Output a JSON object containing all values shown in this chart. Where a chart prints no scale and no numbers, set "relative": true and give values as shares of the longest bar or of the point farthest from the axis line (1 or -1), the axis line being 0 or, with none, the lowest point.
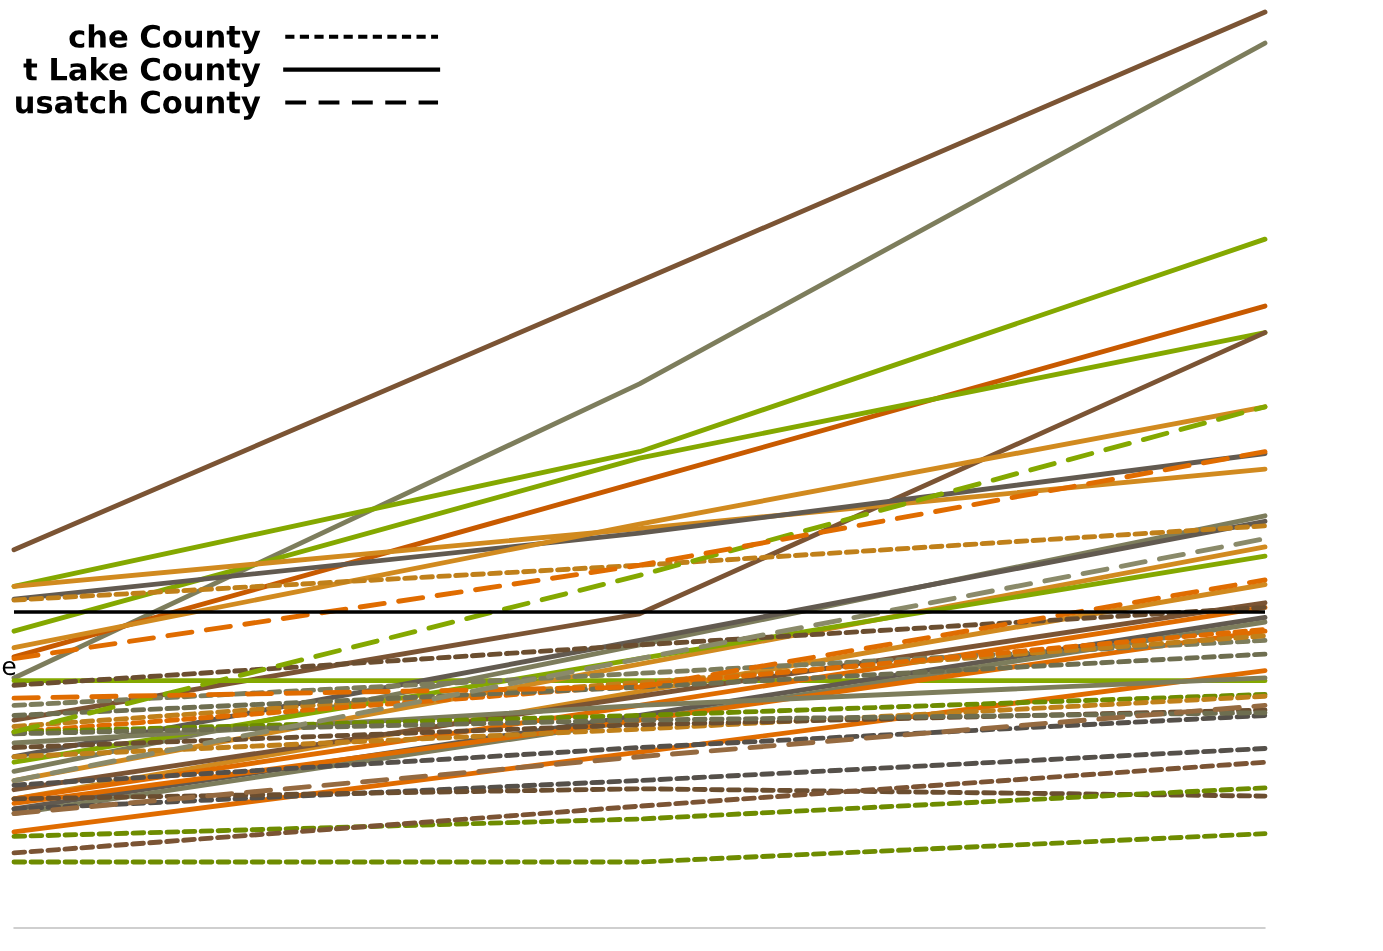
{
  "chart_data": {
    "type": "line",
    "relative": true,
    "categories": [
      null,
      null,
      null
    ],
    "legend": "top left",
    "grid": false,
    "marker": "none",
    "annotations": [
      "e"
    ],
    "ref_lines": [
      {
        "axis": "y",
        "value": 0.345,
        "color": "#000000",
        "line_style": "solid"
      }
    ],
    "series": [
      {
        "name": "che County",
        "color": "#000000",
        "line_style": "dotted",
        "values": [
          null,
          null,
          null
        ]
      },
      {
        "name": "t Lake County",
        "color": "#000000",
        "line_style": "solid",
        "values": [
          null,
          null,
          null
        ]
      },
      {
        "name": "usatch County",
        "color": "#000000",
        "line_style": "dashed",
        "values": [
          null,
          null,
          null
        ]
      },
      {
        "color": "#7b5434",
        "line_style": "solid",
        "values": [
          0.413,
          0.706,
          1.0
        ]
      },
      {
        "color": "#7d7d5c",
        "line_style": "solid",
        "values": [
          0.273,
          0.594,
          0.966
        ]
      },
      {
        "color": "#84a800",
        "line_style": "solid",
        "values": [
          0.373,
          0.52,
          0.752
        ]
      },
      {
        "color": "#c85a00",
        "line_style": "solid",
        "values": [
          0.296,
          0.487,
          0.679
        ]
      },
      {
        "color": "#84a800",
        "line_style": "solid",
        "values": [
          0.324,
          0.513,
          0.65
        ]
      },
      {
        "color": "#7b5434",
        "line_style": "solid",
        "values": [
          0.227,
          0.343,
          0.65
        ]
      },
      {
        "color": "#d18a1f",
        "line_style": "solid",
        "values": [
          0.373,
          0.436,
          0.501
        ]
      },
      {
        "color": "#625a50",
        "line_style": "solid",
        "values": [
          0.359,
          0.431,
          0.518
        ]
      },
      {
        "color": "#d18a1f",
        "line_style": "solid",
        "values": [
          0.306,
          0.441,
          0.569
        ]
      },
      {
        "color": "#84a800",
        "line_style": "solid",
        "values": [
          0.27,
          0.27,
          0.27
        ]
      },
      {
        "color": "#7d7d5c",
        "line_style": "solid",
        "values": [
          0.171,
          0.309,
          0.45
        ]
      },
      {
        "color": "#625a50",
        "line_style": "solid",
        "values": [
          0.187,
          0.314,
          0.444
        ]
      },
      {
        "color": "#d18a1f",
        "line_style": "solid",
        "values": [
          0.161,
          0.288,
          0.416
        ]
      },
      {
        "color": "#84a800",
        "line_style": "solid",
        "values": [
          0.181,
          0.294,
          0.406
        ]
      },
      {
        "color": "#d18a1f",
        "line_style": "solid",
        "values": [
          0.141,
          0.258,
          0.375
        ]
      },
      {
        "color": "#7b5434",
        "line_style": "solid",
        "values": [
          0.151,
          0.253,
          0.355
        ]
      },
      {
        "color": "#e06c00",
        "line_style": "solid",
        "values": [
          0.141,
          0.243,
          0.35
        ]
      },
      {
        "color": "#625a50",
        "line_style": "solid",
        "values": [
          0.13,
          0.232,
          0.339
        ]
      },
      {
        "color": "#7d7d5c",
        "line_style": "solid",
        "values": [
          0.125,
          0.227,
          0.334
        ]
      },
      {
        "color": "#e06c00",
        "line_style": "solid",
        "values": [
          0.136,
          0.227,
          0.324
        ]
      },
      {
        "color": "#e06c00",
        "line_style": "solid",
        "values": [
          0.105,
          0.192,
          0.281
        ]
      },
      {
        "color": "#7d7d5c",
        "line_style": "solid",
        "values": [
          0.202,
          0.243,
          0.273
        ]
      },
      {
        "color": "#c0801a",
        "line_style": "dotted",
        "values": [
          0.358,
          0.396,
          0.439
        ]
      },
      {
        "color": "#6b4e30",
        "line_style": "dotted",
        "values": [
          0.265,
          0.309,
          0.35
        ]
      },
      {
        "color": "#7d7d5c",
        "line_style": "dotted",
        "values": [
          0.243,
          0.278,
          0.314
        ]
      },
      {
        "color": "#c0801a",
        "line_style": "dotted",
        "values": [
          0.22,
          0.268,
          0.319
        ]
      },
      {
        "color": "#e06c00",
        "line_style": "dotted",
        "values": [
          0.214,
          0.265,
          0.326
        ]
      },
      {
        "color": "#6e6e50",
        "line_style": "dotted",
        "values": [
          0.232,
          0.263,
          0.299
        ]
      },
      {
        "color": "#6e8c00",
        "line_style": "dotted",
        "values": [
          0.214,
          0.232,
          0.255
        ]
      },
      {
        "color": "#c0801a",
        "line_style": "dotted",
        "values": [
          0.187,
          0.217,
          0.253
        ]
      },
      {
        "color": "#55504a",
        "line_style": "dotted",
        "values": [
          0.156,
          0.197,
          0.232
        ]
      },
      {
        "color": "#6b4e30",
        "line_style": "dotted",
        "values": [
          0.197,
          0.222,
          0.238
        ]
      },
      {
        "color": "#6e6e50",
        "line_style": "dotted",
        "values": [
          0.212,
          0.227,
          0.235
        ]
      },
      {
        "color": "#55504a",
        "line_style": "dotted",
        "values": [
          0.13,
          0.161,
          0.196
        ]
      },
      {
        "color": "#6b4e30",
        "line_style": "dotted",
        "values": [
          0.141,
          0.152,
          0.144
        ]
      },
      {
        "color": "#6e8c00",
        "line_style": "dotted",
        "values": [
          0.1,
          0.119,
          0.153
        ]
      },
      {
        "color": "#7b5434",
        "line_style": "dotted",
        "values": [
          0.082,
          0.133,
          0.181
        ]
      },
      {
        "color": "#6e8c00",
        "line_style": "dotted",
        "values": [
          0.072,
          0.072,
          0.103
        ]
      },
      {
        "color": "#84a800",
        "line_style": "dashed",
        "values": [
          0.214,
          0.385,
          0.569
        ]
      },
      {
        "color": "#e06c00",
        "line_style": "dashed",
        "values": [
          0.294,
          0.396,
          0.52
        ]
      },
      {
        "color": "#e06c00",
        "line_style": "dashed",
        "values": [
          0.251,
          0.263,
          0.38
        ]
      },
      {
        "color": "#956a40",
        "line_style": "dashed",
        "values": [
          0.125,
          0.187,
          0.243
        ]
      },
      {
        "color": "#8a8a6a",
        "line_style": "dashed",
        "values": [
          0.161,
          0.294,
          0.425
        ]
      }
    ]
  }
}
